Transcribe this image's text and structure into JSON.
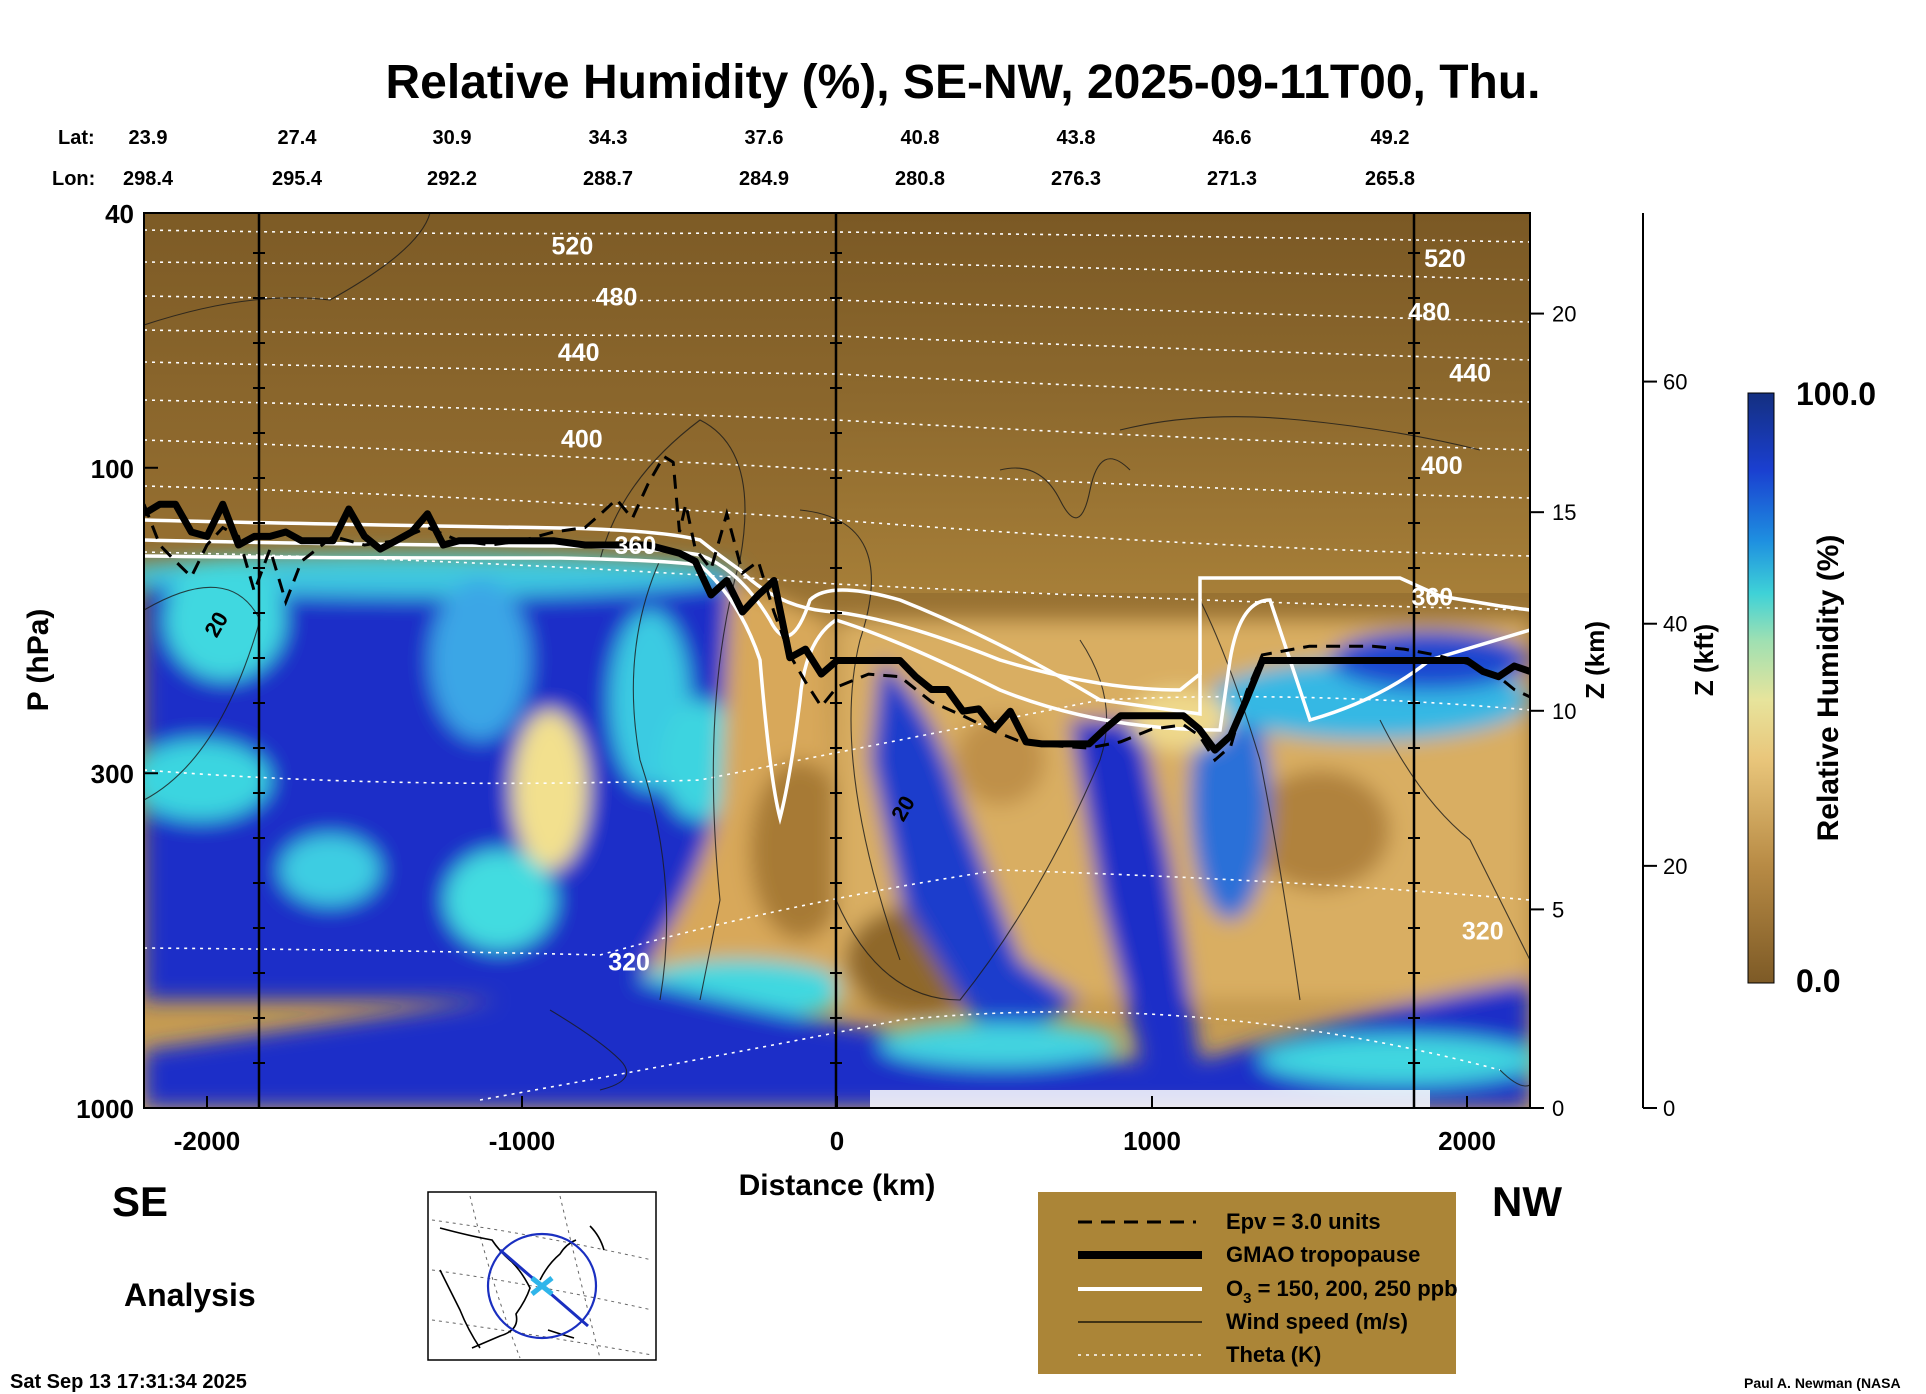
{
  "chart_data": {
    "type": "heatmap",
    "title": "Relative Humidity (%), SE-NW, 2025-09-11T00, Thu.",
    "lat_label": "Lat:",
    "lon_label": "Lon:",
    "latitudes": [
      "23.9",
      "27.4",
      "30.9",
      "34.3",
      "37.6",
      "40.8",
      "43.8",
      "46.6",
      "49.2"
    ],
    "longitudes": [
      "298.4",
      "295.4",
      "292.2",
      "288.7",
      "284.9",
      "280.8",
      "276.3",
      "271.3",
      "265.8"
    ],
    "xlabel": "Distance (km)",
    "xlim": [
      -2200,
      2200
    ],
    "x_ticks": [
      -2000,
      -1000,
      0,
      1000,
      2000
    ],
    "x_tick_labels": [
      "-2000",
      "-1000",
      "0",
      "1000",
      "2000"
    ],
    "ylabel": "P (hPa)",
    "ylim": [
      1000,
      40
    ],
    "y_ticks": [
      40,
      100,
      300,
      1000
    ],
    "y_tick_labels": [
      "40",
      "100",
      "300",
      "1000"
    ],
    "z_km_label": "Z (km)",
    "z_km_ticks": [
      0,
      5,
      10,
      15,
      20
    ],
    "z_km_labels": [
      "0",
      "5",
      "10",
      "15",
      "20"
    ],
    "z_kft_label": "Z (kft)",
    "z_kft_ticks": [
      0,
      20,
      40,
      60
    ],
    "z_kft_labels": [
      "0",
      "20",
      "40",
      "60"
    ],
    "direction_left": "SE",
    "direction_right": "NW",
    "analysis_label": "Analysis",
    "colorbar": {
      "label": "Relative Humidity (%)",
      "min": 0.0,
      "max": 100.0,
      "min_label": "0.0",
      "max_label": "100.0"
    },
    "theta_labels": [
      {
        "text": "520",
        "x": -840,
        "p": 45
      },
      {
        "text": "480",
        "x": -700,
        "p": 54
      },
      {
        "text": "440",
        "x": -820,
        "p": 66
      },
      {
        "text": "400",
        "x": -810,
        "p": 90
      },
      {
        "text": "360",
        "x": -640,
        "p": 132
      },
      {
        "text": "320",
        "x": -660,
        "p": 590
      },
      {
        "text": "520",
        "x": 1930,
        "p": 47
      },
      {
        "text": "480",
        "x": 1880,
        "p": 57
      },
      {
        "text": "440",
        "x": 2010,
        "p": 71
      },
      {
        "text": "400",
        "x": 1920,
        "p": 99
      },
      {
        "text": "360",
        "x": 1890,
        "p": 159
      },
      {
        "text": "320",
        "x": 2050,
        "p": 528
      }
    ],
    "theta_levels_K": [
      320,
      360,
      400,
      440,
      480,
      520
    ],
    "wind_labels": [
      {
        "text": "20",
        "x": -1950,
        "p": 178
      },
      {
        "text": "20",
        "x": 230,
        "p": 345
      }
    ],
    "tropopause": {
      "name": "GMAO tropopause",
      "x": [
        -2200,
        -2150,
        -2100,
        -2050,
        -2000,
        -1950,
        -1900,
        -1850,
        -1800,
        -1750,
        -1700,
        -1650,
        -1600,
        -1550,
        -1500,
        -1450,
        -1400,
        -1350,
        -1300,
        -1250,
        -1200,
        -1100,
        -1000,
        -900,
        -800,
        -700,
        -600,
        -500,
        -450,
        -400,
        -350,
        -300,
        -250,
        -200,
        -150,
        -100,
        -50,
        0,
        100,
        200,
        250,
        300,
        350,
        400,
        450,
        500,
        550,
        600,
        650,
        700,
        750,
        800,
        850,
        900,
        950,
        1000,
        1050,
        1100,
        1150,
        1200,
        1250,
        1300,
        1350,
        1400,
        1500,
        1600,
        1700,
        1800,
        1900,
        2000,
        2050,
        2100,
        2150,
        2200
      ],
      "p": [
        118,
        114,
        114,
        126,
        128,
        114,
        132,
        128,
        128,
        126,
        130,
        130,
        130,
        116,
        128,
        134,
        130,
        126,
        118,
        132,
        130,
        130,
        130,
        130,
        132,
        132,
        132,
        136,
        140,
        158,
        150,
        168,
        158,
        150,
        198,
        192,
        210,
        200,
        200,
        200,
        212,
        222,
        222,
        240,
        238,
        256,
        240,
        268,
        270,
        270,
        270,
        270,
        256,
        244,
        244,
        244,
        244,
        244,
        256,
        276,
        262,
        230,
        200,
        200,
        200,
        200,
        200,
        200,
        200,
        200,
        208,
        212,
        204,
        208
      ]
    },
    "epv": {
      "name": "Epv = 3.0 units",
      "x": [
        -2200,
        -2150,
        -2100,
        -2050,
        -2000,
        -1950,
        -1900,
        -1850,
        -1800,
        -1750,
        -1700,
        -1600,
        -1500,
        -1400,
        -1300,
        -1200,
        -1100,
        -1000,
        -900,
        -800,
        -750,
        -700,
        -650,
        -600,
        -550,
        -520,
        -500,
        -480,
        -450,
        -400,
        -350,
        -300,
        -250,
        -200,
        -150,
        -100,
        -50,
        0,
        100,
        200,
        300,
        400,
        500,
        600,
        700,
        800,
        900,
        1000,
        1100,
        1150,
        1200,
        1250,
        1300,
        1350,
        1400,
        1500,
        1600,
        1700,
        1800,
        1900,
        2000,
        2100,
        2150,
        2200
      ],
      "p": [
        114,
        132,
        140,
        148,
        132,
        124,
        128,
        156,
        134,
        162,
        140,
        128,
        132,
        130,
        124,
        130,
        132,
        130,
        126,
        124,
        118,
        112,
        120,
        106,
        96,
        98,
        126,
        114,
        134,
        144,
        118,
        146,
        140,
        168,
        196,
        216,
        236,
        220,
        210,
        212,
        232,
        244,
        258,
        270,
        272,
        274,
        268,
        256,
        252,
        262,
        286,
        272,
        224,
        196,
        194,
        190,
        190,
        190,
        192,
        196,
        202,
        212,
        222,
        228
      ]
    },
    "legend": {
      "epv": "Epv = 3.0 units",
      "tropopause": "GMAO tropopause",
      "ozone": "O",
      "ozone_sub": "3",
      "ozone_rest": " = 150, 200, 250 ppb",
      "wind": "Wind speed (m/s)",
      "theta": "Theta (K)"
    },
    "timestamp": "Sat Sep 13 17:31:34 2025",
    "credit": "Paul A. Newman (NASA"
  }
}
